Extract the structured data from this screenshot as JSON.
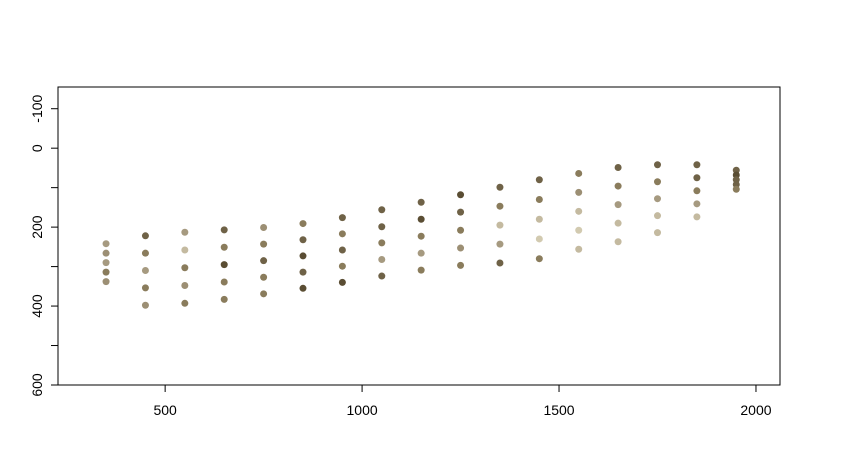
{
  "chart_data": {
    "type": "scatter",
    "xlim": [
      228,
      2061
    ],
    "ylim": [
      600,
      -155
    ],
    "xticks": [
      500,
      1000,
      1500,
      2000
    ],
    "yticks": [
      {
        "value": -100,
        "label": "-100"
      },
      0,
      {
        "value": 100,
        "label": null
      },
      200,
      {
        "value": 300,
        "label": null
      },
      400,
      {
        "value": 500,
        "label": null
      },
      600
    ],
    "x": [
      350,
      350,
      350,
      350,
      350,
      450,
      450,
      450,
      450,
      450,
      550,
      550,
      550,
      550,
      550,
      650,
      650,
      650,
      650,
      650,
      750,
      750,
      750,
      750,
      750,
      850,
      850,
      850,
      850,
      850,
      950,
      950,
      950,
      950,
      950,
      1050,
      1050,
      1050,
      1050,
      1050,
      1150,
      1150,
      1150,
      1150,
      1150,
      1250,
      1250,
      1250,
      1250,
      1250,
      1350,
      1350,
      1350,
      1350,
      1350,
      1450,
      1450,
      1450,
      1450,
      1450,
      1550,
      1550,
      1550,
      1550,
      1550,
      1650,
      1650,
      1650,
      1650,
      1650,
      1750,
      1750,
      1750,
      1750,
      1750,
      1850,
      1850,
      1850,
      1850,
      1850,
      1950,
      1950,
      1950,
      1950,
      1950
    ],
    "y": [
      242,
      266,
      290,
      314,
      338,
      222,
      266,
      310,
      354,
      398,
      213,
      258,
      303,
      348,
      393,
      207,
      251,
      295,
      339,
      383,
      201,
      243,
      285,
      327,
      369,
      191,
      232,
      273,
      314,
      355,
      176,
      217,
      258,
      299,
      340,
      156,
      199,
      240,
      282,
      324,
      137,
      180,
      223,
      266,
      309,
      118,
      162,
      208,
      253,
      297,
      99,
      147,
      195,
      243,
      291,
      80,
      130,
      180,
      230,
      280,
      64,
      112,
      160,
      208,
      256,
      49,
      96,
      143,
      190,
      237,
      42,
      85,
      128,
      171,
      214,
      42,
      75,
      108,
      141,
      174,
      56,
      68,
      80,
      92,
      104
    ],
    "colors": [
      "#a69a80",
      "#9c8f74",
      "#a69a80",
      "#8a7c5c",
      "#9c8f74",
      "#6f6247",
      "#8a7c5c",
      "#a69a80",
      "#8a7c5c",
      "#9c8f74",
      "#a69a80",
      "#c4baa0",
      "#8a7c5c",
      "#9c8f74",
      "#8a7c5c",
      "#6f6247",
      "#8a7c5c",
      "#5a4d33",
      "#8a7c5c",
      "#8a7c5c",
      "#9c8f74",
      "#8a7c5c",
      "#6f6247",
      "#8a7c5c",
      "#8a7c5c",
      "#8a7c5c",
      "#6f6247",
      "#5a4d33",
      "#6f6247",
      "#5a4d33",
      "#6f6247",
      "#8a7c5c",
      "#6f6247",
      "#8a7c5c",
      "#5a4d33",
      "#6f6247",
      "#6f6247",
      "#8a7c5c",
      "#a69a80",
      "#6f6247",
      "#6f6247",
      "#5a4d33",
      "#8a7c5c",
      "#a69a80",
      "#8a7c5c",
      "#5a4d33",
      "#6f6247",
      "#8a7c5c",
      "#9c8f74",
      "#8a7c5c",
      "#6f6247",
      "#8a7c5c",
      "#c4baa0",
      "#a69a80",
      "#6f6247",
      "#6f6247",
      "#8a7c5c",
      "#c4baa0",
      "#d2cab0",
      "#8a7c5c",
      "#8a7c5c",
      "#9c8f74",
      "#c4baa0",
      "#d2cab0",
      "#c4baa0",
      "#6f6247",
      "#8a7c5c",
      "#a69a80",
      "#c4baa0",
      "#c4baa0",
      "#6f6247",
      "#8a7c5c",
      "#a69a80",
      "#c4baa0",
      "#c4baa0",
      "#6f6247",
      "#6f6247",
      "#8a7c5c",
      "#a69a80",
      "#c4baa0",
      "#6f6247",
      "#5a4d33",
      "#6f6247",
      "#6f6247",
      "#8a7c5c"
    ]
  }
}
